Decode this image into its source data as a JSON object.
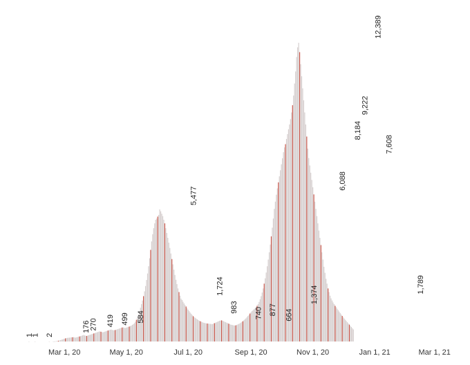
{
  "chart_data": {
    "type": "bar",
    "title": "",
    "xlabel": "",
    "ylabel": "",
    "x_range": [
      "2020-01-22",
      "2021-03-06"
    ],
    "ylim": [
      0,
      12500
    ],
    "grid": false,
    "x_ticks": [
      {
        "date": "2020-03-01",
        "label": "Mar 1, 20"
      },
      {
        "date": "2020-05-01",
        "label": "May 1, 20"
      },
      {
        "date": "2020-07-01",
        "label": "Jul 1, 20"
      },
      {
        "date": "2020-09-01",
        "label": "Sep 1, 20"
      },
      {
        "date": "2020-11-01",
        "label": "Nov 1, 20"
      },
      {
        "date": "2021-01-01",
        "label": "Jan 1, 21"
      },
      {
        "date": "2021-03-01",
        "label": "Mar 1, 21"
      }
    ],
    "data_labels": [
      {
        "date": "2020-01-26",
        "value": 1,
        "label": "1"
      },
      {
        "date": "2020-02-01",
        "value": 1,
        "label": "1"
      },
      {
        "date": "2020-02-15",
        "value": 2,
        "label": "2"
      },
      {
        "date": "2020-03-22",
        "value": 176,
        "label": "176"
      },
      {
        "date": "2020-03-29",
        "value": 270,
        "label": "270"
      },
      {
        "date": "2020-04-15",
        "value": 419,
        "label": "419"
      },
      {
        "date": "2020-04-29",
        "value": 499,
        "label": "499"
      },
      {
        "date": "2020-05-15",
        "value": 584,
        "label": "584"
      },
      {
        "date": "2020-07-06",
        "value": 5477,
        "label": "5,477"
      },
      {
        "date": "2020-08-01",
        "value": 1724,
        "label": "1,724"
      },
      {
        "date": "2020-08-15",
        "value": 983,
        "label": "983"
      },
      {
        "date": "2020-09-08",
        "value": 740,
        "label": "740"
      },
      {
        "date": "2020-09-22",
        "value": 877,
        "label": "877"
      },
      {
        "date": "2020-10-08",
        "value": 664,
        "label": "664"
      },
      {
        "date": "2020-11-02",
        "value": 1374,
        "label": "1,374"
      },
      {
        "date": "2020-11-30",
        "value": 6088,
        "label": "6,088"
      },
      {
        "date": "2020-12-15",
        "value": 8184,
        "label": "8,184"
      },
      {
        "date": "2020-12-22",
        "value": 9222,
        "label": "9,222"
      },
      {
        "date": "2021-01-04",
        "value": 12389,
        "label": "12,389"
      },
      {
        "date": "2021-01-15",
        "value": 7608,
        "label": "7,608"
      },
      {
        "date": "2021-02-15",
        "value": 1789,
        "label": "1,789"
      }
    ],
    "series": [
      {
        "start_date": "2020-01-22",
        "values": [
          0,
          0,
          0,
          0,
          1,
          0,
          0,
          0,
          0,
          0,
          1,
          0,
          0,
          0,
          0,
          0,
          0,
          0,
          0,
          0,
          0,
          0,
          0,
          0,
          2,
          0,
          0,
          0,
          3,
          5,
          8,
          15,
          22,
          30,
          42,
          55,
          70,
          85,
          100,
          115,
          130,
          140,
          150,
          155,
          160,
          165,
          170,
          176,
          180,
          170,
          160,
          175,
          185,
          200,
          210,
          225,
          240,
          255,
          270,
          250,
          240,
          230,
          245,
          260,
          275,
          290,
          305,
          320,
          335,
          350,
          365,
          380,
          395,
          410,
          419,
          405,
          390,
          380,
          395,
          410,
          425,
          440,
          455,
          470,
          485,
          499,
          480,
          470,
          465,
          475,
          490,
          505,
          520,
          535,
          550,
          565,
          580,
          584,
          570,
          560,
          575,
          590,
          605,
          620,
          640,
          660,
          690,
          720,
          760,
          820,
          900,
          1000,
          1120,
          1250,
          1400,
          1550,
          1700,
          1880,
          2080,
          2300,
          2550,
          2820,
          3120,
          3450,
          3800,
          4150,
          4450,
          4700,
          4900,
          5050,
          5100,
          5180,
          5250,
          5477,
          5400,
          5300,
          5200,
          5050,
          4900,
          4700,
          4500,
          4300,
          4100,
          3880,
          3650,
          3420,
          3200,
          2980,
          2760,
          2560,
          2380,
          2200,
          2050,
          1900,
          1780,
          1724,
          1650,
          1580,
          1510,
          1450,
          1380,
          1320,
          1260,
          1200,
          1150,
          1100,
          1050,
          1010,
          983,
          950,
          920,
          890,
          860,
          840,
          820,
          800,
          780,
          770,
          760,
          750,
          745,
          740,
          735,
          730,
          725,
          720,
          740,
          760,
          780,
          800,
          820,
          840,
          860,
          870,
          877,
          860,
          840,
          820,
          800,
          780,
          760,
          740,
          720,
          700,
          690,
          680,
          670,
          664,
          670,
          690,
          710,
          730,
          750,
          780,
          810,
          840,
          880,
          920,
          960,
          1010,
          1060,
          1110,
          1160,
          1210,
          1260,
          1300,
          1340,
          1374,
          1420,
          1480,
          1550,
          1640,
          1750,
          1880,
          2030,
          2200,
          2400,
          2620,
          2860,
          3120,
          3400,
          3700,
          4020,
          4360,
          4720,
          5100,
          5500,
          5800,
          6088,
          6350,
          6600,
          6850,
          7100,
          7350,
          7600,
          7850,
          8050,
          8184,
          8400,
          8600,
          8800,
          9000,
          9222,
          9500,
          9800,
          10200,
          10700,
          11200,
          11800,
          12200,
          12389,
          12000,
          11500,
          11000,
          10500,
          10000,
          9500,
          9000,
          8500,
          8000,
          7608,
          7300,
          7000,
          6700,
          6400,
          6100,
          5800,
          5500,
          5200,
          4900,
          4600,
          4300,
          4000,
          3700,
          3400,
          3100,
          2850,
          2600,
          2400,
          2200,
          2050,
          1900,
          1789,
          1700,
          1620,
          1550,
          1480,
          1420,
          1360,
          1300,
          1240,
          1180,
          1120,
          1060,
          1000,
          950,
          900,
          850,
          800,
          750,
          700,
          650,
          600,
          550,
          500
        ]
      }
    ],
    "colors": {
      "bar_gray": "#d6cfcf",
      "bar_red": "#c0392b",
      "text": "#333333"
    }
  }
}
